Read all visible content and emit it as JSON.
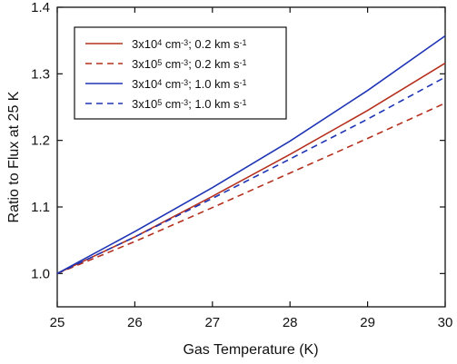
{
  "chart_data": {
    "type": "line",
    "xlabel": "Gas Temperature (K)",
    "ylabel": "Ratio to Flux at 25 K",
    "xlim": [
      25,
      30
    ],
    "ylim": [
      0.95,
      1.4
    ],
    "x_ticks": [
      25,
      26,
      27,
      28,
      29,
      30
    ],
    "y_ticks": [
      1.0,
      1.1,
      1.2,
      1.3,
      1.4
    ],
    "x_tick_labels": [
      "25",
      "26",
      "27",
      "28",
      "29",
      "30"
    ],
    "y_tick_labels": [
      "1.0",
      "1.1",
      "1.2",
      "1.3",
      "1.4"
    ],
    "grid": false,
    "legend_position": "top-left",
    "x": [
      25,
      26,
      27,
      28,
      29,
      30
    ],
    "series": [
      {
        "name": "3x10^4 cm^-3; 0.2 km s^-1",
        "legend": {
          "base": "3x10",
          "exp": "4",
          "mid": " cm",
          "exp2": "-3",
          "tail": "; 0.2 km s",
          "exp3": "-1"
        },
        "color": "#b5301e",
        "dash": "solid",
        "values": [
          1.0,
          1.055,
          1.116,
          1.179,
          1.245,
          1.316
        ]
      },
      {
        "name": "3x10^5 cm^-3; 0.2 km s^-1",
        "legend": {
          "base": "3x10",
          "exp": "5",
          "mid": " cm",
          "exp2": "-3",
          "tail": "; 0.2 km s",
          "exp3": "-1"
        },
        "color": "#b5301e",
        "dash": "dashed",
        "values": [
          1.0,
          1.048,
          1.099,
          1.151,
          1.203,
          1.256
        ]
      },
      {
        "name": "3x10^4 cm^-3; 1.0 km s^-1",
        "legend": {
          "base": "3x10",
          "exp": "4",
          "mid": " cm",
          "exp2": "-3",
          "tail": "; 1.0 km s",
          "exp3": "-1"
        },
        "color": "#1f35b5",
        "dash": "solid",
        "values": [
          1.0,
          1.063,
          1.129,
          1.199,
          1.275,
          1.357
        ]
      },
      {
        "name": "3x10^5 cm^-3; 1.0 km s^-1",
        "legend": {
          "base": "3x10",
          "exp": "5",
          "mid": " cm",
          "exp2": "-3",
          "tail": "; 1.0 km s",
          "exp3": "-1"
        },
        "color": "#1f35b5",
        "dash": "dashed",
        "values": [
          1.0,
          1.055,
          1.113,
          1.172,
          1.232,
          1.295
        ]
      }
    ]
  }
}
